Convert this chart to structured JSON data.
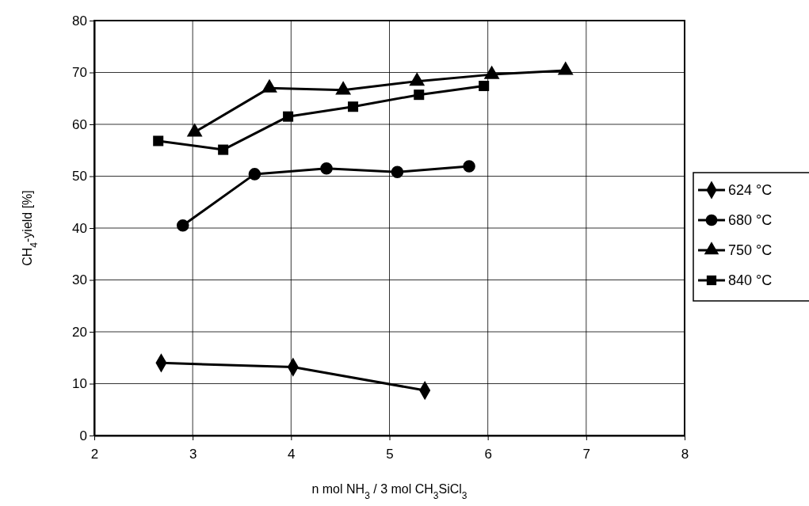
{
  "chart_data": {
    "type": "line",
    "xlabel": "n mol  NH$_{3}$ / 3 mol CH$_{3}$SiCl$_{3}$",
    "ylabel": "CH$_{4}$-yield [%]",
    "xlim": [
      2,
      8
    ],
    "xticks": [
      2,
      3,
      4,
      5,
      6,
      7,
      8
    ],
    "ylim": [
      0,
      80
    ],
    "yticks": [
      0,
      10,
      20,
      30,
      40,
      50,
      60,
      70,
      80
    ],
    "grid": true,
    "legend": "right",
    "line_style": "solid",
    "series": [
      {
        "name": "624 °C",
        "color": "#000000",
        "marker": "diamond",
        "x": [
          2.68,
          4.02,
          5.36
        ],
        "values": [
          14.0,
          13.2,
          8.7
        ]
      },
      {
        "name": "680 °C",
        "color": "#000000",
        "marker": "circle",
        "x": [
          2.9,
          3.63,
          4.36,
          5.08,
          5.81
        ],
        "values": [
          40.5,
          50.4,
          51.5,
          50.8,
          51.9
        ]
      },
      {
        "name": "750 °C",
        "color": "#000000",
        "marker": "triangle",
        "x": [
          3.02,
          3.78,
          4.53,
          5.28,
          6.04,
          6.79
        ],
        "values": [
          58.5,
          67.0,
          66.6,
          68.3,
          69.6,
          70.4
        ]
      },
      {
        "name": "840 °C",
        "color": "#000000",
        "marker": "square",
        "x": [
          2.65,
          3.31,
          3.97,
          4.63,
          5.3,
          5.96
        ],
        "values": [
          56.8,
          55.1,
          61.5,
          63.4,
          65.7,
          67.4
        ]
      }
    ]
  }
}
